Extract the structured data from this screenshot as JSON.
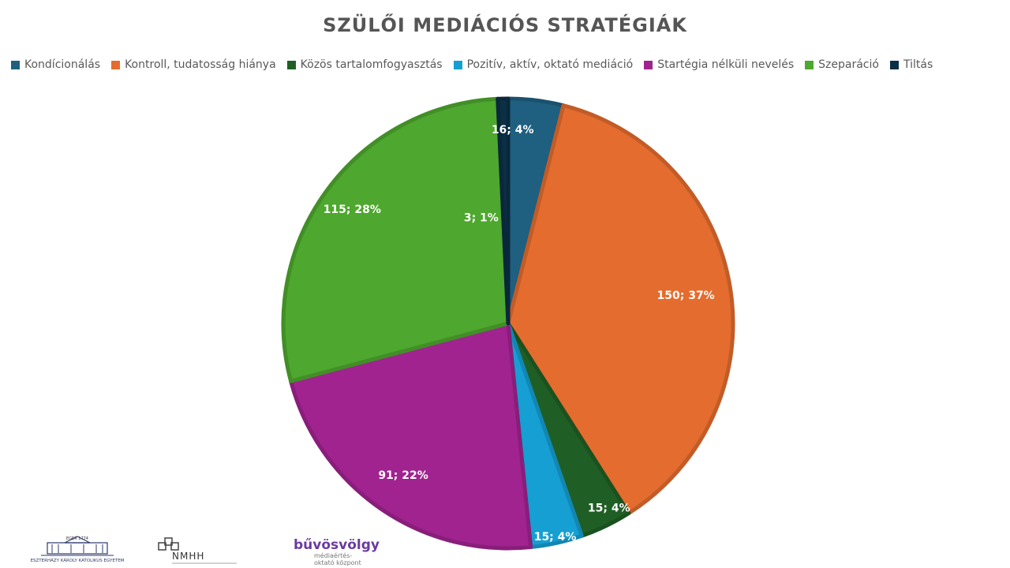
{
  "chart_data": {
    "type": "pie",
    "title": "SZÜLŐI MEDIÁCIÓS STRATÉGIÁK",
    "legend_position": "top",
    "slices": [
      {
        "name": "Kondícionálás",
        "value": 16,
        "percent": 4,
        "label": "16; 4%",
        "color": "#1f5f80"
      },
      {
        "name": "Kontroll, tudatosság hiánya",
        "value": 150,
        "percent": 37,
        "label": "150; 37%",
        "color": "#e46c2e"
      },
      {
        "name": "Közös tartalomfogyasztás",
        "value": 15,
        "percent": 4,
        "label": "15; 4%",
        "color": "#1f5f25"
      },
      {
        "name": "Pozitív, aktív, oktató mediáció",
        "value": 15,
        "percent": 4,
        "label": "15; 4%",
        "color": "#159fd3"
      },
      {
        "name": "Startégia nélküli nevelés",
        "value": 91,
        "percent": 22,
        "label": "91; 22%",
        "color": "#a0238f"
      },
      {
        "name": "Szeparáció",
        "value": 115,
        "percent": 28,
        "label": "115; 28%",
        "color": "#4ea72e"
      },
      {
        "name": "Tiltás",
        "value": 3,
        "percent": 1,
        "label": "3; 1%",
        "color": "#0b2f45"
      }
    ]
  },
  "logos": {
    "left_top_text": "EGER  1774",
    "left_caption": "ESZTERHÁZY KÁROLY KATOLIKUS EGYETEM",
    "middle_name": "NMHH",
    "right_name": "bűvösvölgy",
    "right_subtitle_1": "médiaértés-",
    "right_subtitle_2": "oktató központ"
  }
}
